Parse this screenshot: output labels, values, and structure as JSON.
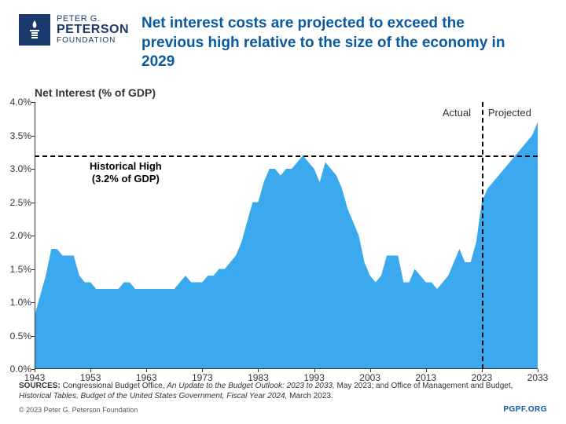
{
  "header": {
    "logo_line1": "PETER G.",
    "logo_line2": "PETERSON",
    "logo_line3": "FOUNDATION",
    "title": "Net interest costs are projected to exceed the previous high relative to the size of the economy in 2029"
  },
  "chart": {
    "type": "area",
    "subtitle": "Net Interest (% of GDP)",
    "fill_color": "#3aa9ee",
    "background_color": "#ffffff",
    "axis_color": "#333333",
    "ref_line_color": "#000000",
    "divider_color": "#000000",
    "x_range": [
      1943,
      2033
    ],
    "y_range": [
      0.0,
      4.0
    ],
    "ytick_step": 0.5,
    "yticks": [
      "0.0%",
      "0.5%",
      "1.0%",
      "1.5%",
      "2.0%",
      "2.5%",
      "3.0%",
      "3.5%",
      "4.0%"
    ],
    "xticks": [
      1943,
      1953,
      1963,
      1973,
      1983,
      1993,
      2003,
      2013,
      2023,
      2033
    ],
    "series": {
      "years": [
        1943,
        1944,
        1945,
        1946,
        1947,
        1948,
        1949,
        1950,
        1951,
        1952,
        1953,
        1954,
        1955,
        1956,
        1957,
        1958,
        1959,
        1960,
        1961,
        1962,
        1963,
        1964,
        1965,
        1966,
        1967,
        1968,
        1969,
        1970,
        1971,
        1972,
        1973,
        1974,
        1975,
        1976,
        1977,
        1978,
        1979,
        1980,
        1981,
        1982,
        1983,
        1984,
        1985,
        1986,
        1987,
        1988,
        1989,
        1990,
        1991,
        1992,
        1993,
        1994,
        1995,
        1996,
        1997,
        1998,
        1999,
        2000,
        2001,
        2002,
        2003,
        2004,
        2005,
        2006,
        2007,
        2008,
        2009,
        2010,
        2011,
        2012,
        2013,
        2014,
        2015,
        2016,
        2017,
        2018,
        2019,
        2020,
        2021,
        2022,
        2023,
        2024,
        2025,
        2026,
        2027,
        2028,
        2029,
        2030,
        2031,
        2032,
        2033
      ],
      "values": [
        0.8,
        1.1,
        1.4,
        1.8,
        1.8,
        1.7,
        1.7,
        1.7,
        1.4,
        1.3,
        1.3,
        1.2,
        1.2,
        1.2,
        1.2,
        1.2,
        1.3,
        1.3,
        1.2,
        1.2,
        1.2,
        1.2,
        1.2,
        1.2,
        1.2,
        1.2,
        1.3,
        1.4,
        1.3,
        1.3,
        1.3,
        1.4,
        1.4,
        1.5,
        1.5,
        1.6,
        1.7,
        1.9,
        2.2,
        2.5,
        2.5,
        2.8,
        3.0,
        3.0,
        2.9,
        3.0,
        3.0,
        3.1,
        3.2,
        3.1,
        3.0,
        2.8,
        3.1,
        3.0,
        2.9,
        2.7,
        2.4,
        2.2,
        2.0,
        1.6,
        1.4,
        1.3,
        1.4,
        1.7,
        1.7,
        1.7,
        1.3,
        1.3,
        1.5,
        1.4,
        1.3,
        1.3,
        1.2,
        1.3,
        1.4,
        1.6,
        1.8,
        1.6,
        1.6,
        1.9,
        2.5,
        2.7,
        2.8,
        2.9,
        3.0,
        3.1,
        3.2,
        3.3,
        3.4,
        3.5,
        3.7
      ]
    },
    "reference_line": {
      "value": 3.2,
      "label_line1": "Historical High",
      "label_line2": "(3.2% of GDP)"
    },
    "divider": {
      "year": 2023,
      "label_left": "Actual",
      "label_right": "Projected"
    },
    "title_fontsize": 19,
    "subtitle_fontsize": 14,
    "tick_fontsize": 12,
    "annotation_fontsize": 13
  },
  "footer": {
    "sources_label": "SOURCES:",
    "sources_text": " Congressional Budget Office, ",
    "sources_italic1": "An Update to the Budget Outlook: 2023 to 2033,",
    "sources_text2": " May 2023; and Office of Management and Budget, ",
    "sources_italic2": "Historical Tables, Budget of the United States Government, Fiscal Year 2024,",
    "sources_text3": " March 2023.",
    "copyright": "© 2023 Peter G. Peterson Foundation",
    "url": "PGPF.ORG"
  }
}
